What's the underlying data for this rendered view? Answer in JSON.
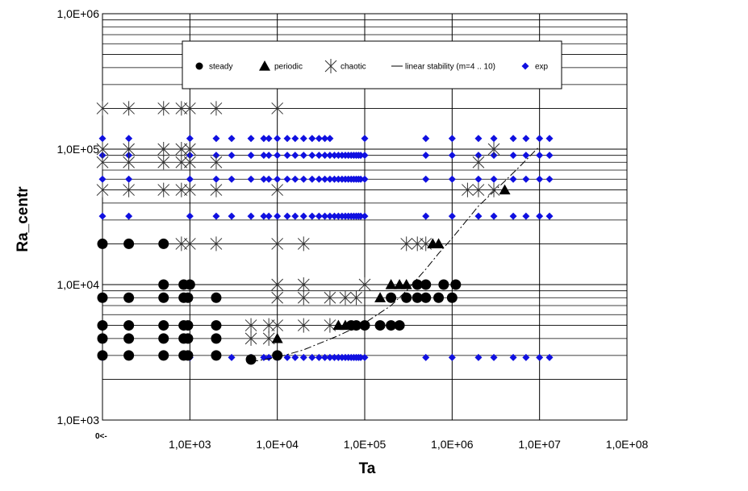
{
  "chart_data": {
    "type": "scatter",
    "xlabel": "Ta",
    "ylabel": "Ra_centr",
    "x_scale": "log",
    "y_scale": "log",
    "xlim": [
      100,
      100000000
    ],
    "ylim": [
      1000,
      1000000
    ],
    "x_ticks": [
      "1,0E+03",
      "1,0E+04",
      "1,0E+05",
      "1,0E+06",
      "1,0E+07",
      "1,0E+08"
    ],
    "y_ticks": [
      "1,0E+03",
      "1,0E+04",
      "1,0E+05",
      "1,0E+06"
    ],
    "zero_note": "0<-",
    "grid": true,
    "legend_position": "top-center",
    "colors": {
      "exp": "#1010e0",
      "markers": "#000000",
      "grid": "#000000"
    },
    "series": [
      {
        "name": "steady",
        "marker": "circle",
        "points": [
          [
            100,
            3000
          ],
          [
            200,
            3000
          ],
          [
            500,
            3000
          ],
          [
            850,
            3000
          ],
          [
            950,
            3000
          ],
          [
            2000,
            3000
          ],
          [
            5000,
            2800
          ],
          [
            10000,
            3000
          ],
          [
            100,
            4000
          ],
          [
            200,
            4000
          ],
          [
            500,
            4000
          ],
          [
            850,
            4000
          ],
          [
            950,
            4000
          ],
          [
            2000,
            4000
          ],
          [
            100,
            5000
          ],
          [
            200,
            5000
          ],
          [
            500,
            5000
          ],
          [
            850,
            5000
          ],
          [
            950,
            5000
          ],
          [
            2000,
            5000
          ],
          [
            70000,
            5000
          ],
          [
            80000,
            5000
          ],
          [
            100000,
            5000
          ],
          [
            150000,
            5000
          ],
          [
            200000,
            5000
          ],
          [
            250000,
            5000
          ],
          [
            100,
            8000
          ],
          [
            200,
            8000
          ],
          [
            500,
            8000
          ],
          [
            850,
            8000
          ],
          [
            950,
            8000
          ],
          [
            2000,
            8000
          ],
          [
            200000,
            8000
          ],
          [
            300000,
            8000
          ],
          [
            400000,
            8000
          ],
          [
            500000,
            8000
          ],
          [
            700000,
            8000
          ],
          [
            1000000,
            8000
          ],
          [
            500,
            10000
          ],
          [
            850,
            10000
          ],
          [
            1000,
            10000
          ],
          [
            400000,
            10000
          ],
          [
            500000,
            10000
          ],
          [
            800000,
            10000
          ],
          [
            1100000,
            10000
          ],
          [
            100,
            20000
          ],
          [
            200,
            20000
          ],
          [
            500,
            20000
          ]
        ]
      },
      {
        "name": "periodic",
        "marker": "triangle",
        "points": [
          [
            10000,
            4000
          ],
          [
            50000,
            5000
          ],
          [
            60000,
            5000
          ],
          [
            150000,
            8000
          ],
          [
            200000,
            10000
          ],
          [
            250000,
            10000
          ],
          [
            300000,
            10000
          ],
          [
            600000,
            20000
          ],
          [
            700000,
            20000
          ],
          [
            4000000,
            50000
          ]
        ]
      },
      {
        "name": "chaotic",
        "marker": "asterisk",
        "points": [
          [
            100,
            200000
          ],
          [
            200,
            200000
          ],
          [
            500,
            200000
          ],
          [
            800,
            200000
          ],
          [
            1000,
            200000
          ],
          [
            2000,
            200000
          ],
          [
            10000,
            200000
          ],
          [
            100,
            100000
          ],
          [
            200,
            100000
          ],
          [
            500,
            100000
          ],
          [
            800,
            100000
          ],
          [
            1000,
            100000
          ],
          [
            100,
            80000
          ],
          [
            200,
            80000
          ],
          [
            500,
            80000
          ],
          [
            800,
            80000
          ],
          [
            1000,
            80000
          ],
          [
            2000,
            80000
          ],
          [
            2000000,
            80000
          ],
          [
            3000000,
            100000
          ],
          [
            100,
            50000
          ],
          [
            200,
            50000
          ],
          [
            500,
            50000
          ],
          [
            800,
            50000
          ],
          [
            1000,
            50000
          ],
          [
            2000,
            50000
          ],
          [
            10000,
            50000
          ],
          [
            1500000,
            50000
          ],
          [
            2000000,
            50000
          ],
          [
            3000000,
            50000
          ],
          [
            800,
            20000
          ],
          [
            1000,
            20000
          ],
          [
            2000,
            20000
          ],
          [
            10000,
            20000
          ],
          [
            20000,
            20000
          ],
          [
            300000,
            20000
          ],
          [
            400000,
            20000
          ],
          [
            500000,
            20000
          ],
          [
            10000,
            10000
          ],
          [
            20000,
            10000
          ],
          [
            100000,
            10000
          ],
          [
            10000,
            8000
          ],
          [
            20000,
            8000
          ],
          [
            40000,
            8000
          ],
          [
            60000,
            8000
          ],
          [
            80000,
            8000
          ],
          [
            5000,
            5000
          ],
          [
            8000,
            5000
          ],
          [
            10000,
            5000
          ],
          [
            20000,
            5000
          ],
          [
            40000,
            5000
          ],
          [
            5000,
            4000
          ],
          [
            8000,
            4000
          ]
        ]
      },
      {
        "name": "linear stability (m=4 .. 10)",
        "marker": "line",
        "points": [
          [
            5000,
            2700
          ],
          [
            10000,
            2900
          ],
          [
            20000,
            3300
          ],
          [
            50000,
            4200
          ],
          [
            100000,
            5200
          ],
          [
            200000,
            7000
          ],
          [
            300000,
            9000
          ],
          [
            500000,
            13000
          ],
          [
            700000,
            17000
          ],
          [
            1000000,
            22000
          ],
          [
            2000000,
            38000
          ],
          [
            4000000,
            58000
          ],
          [
            6000000,
            75000
          ],
          [
            10000000,
            105000
          ]
        ]
      },
      {
        "name": "exp",
        "marker": "diamond",
        "rows": [
          {
            "y": 120000,
            "x": [
              100,
              200,
              1000,
              2000,
              3000,
              5000,
              7000,
              8000,
              10000,
              13000,
              16000,
              20000,
              25000,
              30000,
              35000,
              40000,
              100000,
              500000,
              1000000,
              2000000,
              3000000,
              5000000,
              7000000,
              10000000,
              13000000
            ]
          },
          {
            "y": 90000,
            "x": [
              100,
              200,
              1000,
              2000,
              3000,
              5000,
              7000,
              8000,
              10000,
              13000,
              16000,
              20000,
              25000,
              30000,
              35000,
              40000,
              45000,
              50000,
              55000,
              60000,
              65000,
              70000,
              75000,
              80000,
              85000,
              90000,
              100000,
              500000,
              1000000,
              2000000,
              3000000,
              5000000,
              7000000,
              10000000,
              13000000
            ]
          },
          {
            "y": 60000,
            "x": [
              100,
              200,
              1000,
              2000,
              3000,
              5000,
              7000,
              8000,
              10000,
              13000,
              16000,
              20000,
              25000,
              30000,
              35000,
              40000,
              45000,
              50000,
              55000,
              60000,
              65000,
              70000,
              75000,
              80000,
              85000,
              90000,
              100000,
              500000,
              1000000,
              2000000,
              3000000,
              5000000,
              7000000,
              10000000,
              13000000
            ]
          },
          {
            "y": 32000,
            "x": [
              100,
              200,
              1000,
              2000,
              3000,
              5000,
              7000,
              8000,
              10000,
              13000,
              16000,
              20000,
              25000,
              30000,
              35000,
              40000,
              45000,
              50000,
              55000,
              60000,
              65000,
              70000,
              75000,
              80000,
              85000,
              90000,
              100000,
              500000,
              1000000,
              2000000,
              3000000,
              5000000,
              7000000,
              10000000,
              13000000
            ]
          },
          {
            "y": 2900,
            "x": [
              100,
              1000,
              3000,
              5000,
              7000,
              8000,
              10000,
              13000,
              16000,
              20000,
              25000,
              30000,
              35000,
              40000,
              45000,
              50000,
              55000,
              60000,
              65000,
              70000,
              75000,
              80000,
              85000,
              90000,
              100000,
              500000,
              1000000,
              2000000,
              3000000,
              5000000,
              7000000,
              10000000,
              13000000
            ]
          }
        ]
      }
    ]
  }
}
